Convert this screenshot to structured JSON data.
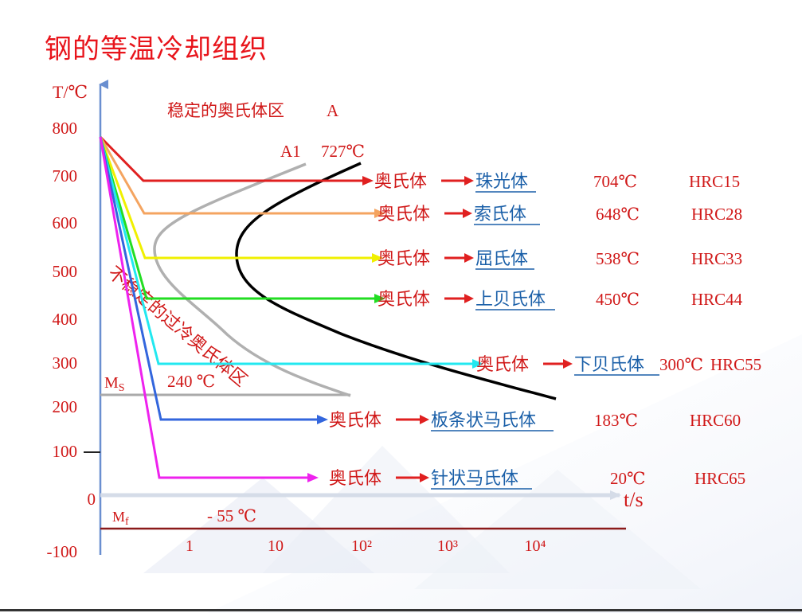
{
  "title": "钢的等温冷却组织",
  "axes": {
    "y_label": "T/℃",
    "x_label": "t/s",
    "y_ticks": [
      "800",
      "700",
      "600",
      "500",
      "400",
      "300",
      "200",
      "100",
      "0",
      "-100"
    ],
    "x_ticks": [
      "1",
      "10",
      "10²",
      "10³",
      "10⁴"
    ]
  },
  "labels": {
    "stable_region": "稳定的奥氏体区",
    "stable_region_letter": "A",
    "a1": "A1",
    "a1_temp": "727℃",
    "unstable_region": "不稳定的过冷奥氏体区",
    "ms": "MS",
    "ms_temp": "240 ℃",
    "mf": "Mf",
    "mf_temp": "- 55 ℃"
  },
  "transformations": [
    {
      "from": "奥氏体",
      "product": "珠光体",
      "temp": "704℃",
      "hardness": "HRC15",
      "color": "#e02020"
    },
    {
      "from": "奥氏体",
      "product": "索氏体",
      "temp": "648℃",
      "hardness": "HRC28",
      "color": "#f4a460"
    },
    {
      "from": "奥氏体",
      "product": "屈氏体",
      "temp": "538℃",
      "hardness": "HRC33",
      "color": "#f0f000"
    },
    {
      "from": "奥氏体",
      "product": "上贝氏体",
      "temp": "450℃",
      "hardness": "HRC44",
      "color": "#22dd22"
    },
    {
      "from": "奥氏体",
      "product": "下贝氏体",
      "temp": "300℃",
      "hardness": "HRC55",
      "color": "#22e8f0"
    },
    {
      "from": "奥氏体",
      "product": "板条状马氏体",
      "temp": "183℃",
      "hardness": "HRC60",
      "color": "#3366dd"
    },
    {
      "from": "奥氏体",
      "product": "针状马氏体",
      "temp": "20℃",
      "hardness": "HRC65",
      "color": "#ee22ee"
    }
  ],
  "colors": {
    "title": "#e8141b",
    "text_red": "#d01818",
    "product_blue": "#1a5fa8",
    "axis": "#6a8fd0",
    "c_curve_start": "#b0b0b0",
    "c_curve_end": "#000000",
    "mf_line": "#8b1a1a"
  }
}
